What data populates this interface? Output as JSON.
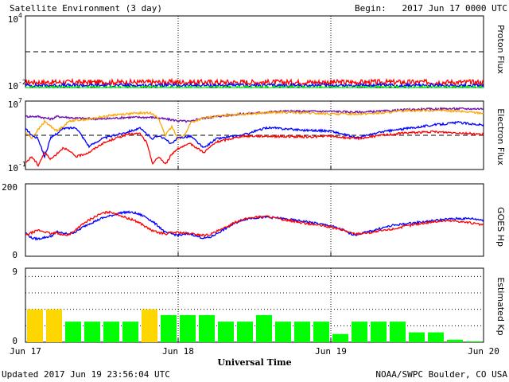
{
  "header": {
    "title": "Satellite Environment (3 day)",
    "begin_label": "Begin:",
    "begin_value": "2017 Jun 17 0000 UTC"
  },
  "footer": {
    "updated": "Updated 2017 Jun 19 23:56:04 UTC",
    "credit": "NOAA/SWPC Boulder, CO USA"
  },
  "colors": {
    "red": "#ff0000",
    "blue": "#0000ff",
    "green": "#00ff00",
    "orange": "#ffa500",
    "purple": "#6a0dad",
    "kp_yellow": "#ffd700",
    "kp_green": "#00ff00"
  },
  "chart_data": [
    {
      "type": "line",
      "panel": "proton",
      "ylabel": "Proton Flux",
      "yscale": "log",
      "ylim_exp": [
        -2,
        4
      ],
      "ytick_labels": [
        {
          "base": "10",
          "exp": "4",
          "value": 4
        },
        {
          "base": "10",
          "exp": "-2",
          "value": -2
        }
      ],
      "threshold_exp": 1,
      "series": [
        {
          "color": "red",
          "base_exp": -1.55,
          "noise": 0.22
        },
        {
          "color": "blue",
          "base_exp": -1.82,
          "noise": 0.14
        },
        {
          "color": "green",
          "base_exp": -2.0,
          "noise": 0.13
        }
      ]
    },
    {
      "type": "line",
      "panel": "electron",
      "ylabel": "Electron Flux",
      "yscale": "log",
      "ylim_exp": [
        -1,
        7
      ],
      "ytick_labels": [
        {
          "base": "10",
          "exp": "7",
          "value": 7
        },
        {
          "base": "10",
          "exp": "-1",
          "value": -1
        }
      ],
      "threshold_exp": 3,
      "series": [
        {
          "color": "purple",
          "points": [
            [
              0,
              5.2
            ],
            [
              2,
              5.2
            ],
            [
              4,
              4.9
            ],
            [
              5,
              5.2
            ],
            [
              8,
              5.0
            ],
            [
              12,
              4.9
            ],
            [
              16,
              5.1
            ],
            [
              20,
              5.1
            ],
            [
              24,
              4.7
            ],
            [
              26,
              4.6
            ],
            [
              27,
              4.9
            ],
            [
              30,
              5.2
            ],
            [
              34,
              5.5
            ],
            [
              40,
              5.8
            ],
            [
              48,
              5.8
            ],
            [
              52,
              5.7
            ],
            [
              56,
              5.8
            ],
            [
              60,
              6.0
            ],
            [
              66,
              6.1
            ],
            [
              72,
              6.1
            ]
          ]
        },
        {
          "color": "orange",
          "points": [
            [
              0,
              3.3
            ],
            [
              1,
              2.7
            ],
            [
              3,
              4.6
            ],
            [
              5,
              3.5
            ],
            [
              7,
              4.7
            ],
            [
              10,
              4.9
            ],
            [
              14,
              5.4
            ],
            [
              18,
              5.6
            ],
            [
              20,
              5.6
            ],
            [
              21,
              4.8
            ],
            [
              22,
              3.0
            ],
            [
              23,
              4.0
            ],
            [
              24,
              2.6
            ],
            [
              25,
              3.0
            ],
            [
              26,
              4.5
            ],
            [
              28,
              5.0
            ],
            [
              32,
              5.4
            ],
            [
              40,
              5.7
            ],
            [
              48,
              5.5
            ],
            [
              52,
              5.5
            ],
            [
              56,
              5.6
            ],
            [
              60,
              5.9
            ],
            [
              66,
              5.9
            ],
            [
              72,
              5.6
            ]
          ]
        },
        {
          "color": "blue",
          "points": [
            [
              0,
              3.8
            ],
            [
              1,
              3.0
            ],
            [
              2,
              2.6
            ],
            [
              3,
              0.5
            ],
            [
              4,
              2.7
            ],
            [
              6,
              3.8
            ],
            [
              8,
              3.9
            ],
            [
              10,
              1.7
            ],
            [
              12,
              2.6
            ],
            [
              14,
              3.0
            ],
            [
              16,
              3.4
            ],
            [
              18,
              3.8
            ],
            [
              19,
              3.2
            ],
            [
              20,
              2.6
            ],
            [
              21,
              3.0
            ],
            [
              22,
              2.5
            ],
            [
              23,
              2.0
            ],
            [
              24,
              2.7
            ],
            [
              26,
              2.9
            ],
            [
              28,
              1.5
            ],
            [
              30,
              2.6
            ],
            [
              34,
              3.0
            ],
            [
              38,
              3.9
            ],
            [
              44,
              3.6
            ],
            [
              48,
              3.5
            ],
            [
              52,
              2.7
            ],
            [
              56,
              3.4
            ],
            [
              60,
              3.8
            ],
            [
              64,
              4.2
            ],
            [
              68,
              4.5
            ],
            [
              72,
              4.2
            ]
          ]
        },
        {
          "color": "red",
          "points": [
            [
              0,
              -0.2
            ],
            [
              1,
              0.5
            ],
            [
              2,
              -0.5
            ],
            [
              3,
              1.0
            ],
            [
              4,
              0.2
            ],
            [
              6,
              1.6
            ],
            [
              8,
              0.5
            ],
            [
              10,
              1.0
            ],
            [
              12,
              2.0
            ],
            [
              14,
              2.6
            ],
            [
              16,
              3.1
            ],
            [
              18,
              3.2
            ],
            [
              19,
              2.2
            ],
            [
              20,
              -0.3
            ],
            [
              21,
              0.5
            ],
            [
              22,
              -0.4
            ],
            [
              23,
              0.8
            ],
            [
              24,
              1.5
            ],
            [
              26,
              2.0
            ],
            [
              28,
              1.0
            ],
            [
              30,
              2.2
            ],
            [
              34,
              2.9
            ],
            [
              38,
              2.9
            ],
            [
              44,
              2.8
            ],
            [
              48,
              2.9
            ],
            [
              52,
              2.6
            ],
            [
              56,
              3.0
            ],
            [
              60,
              3.3
            ],
            [
              64,
              3.4
            ],
            [
              68,
              3.3
            ],
            [
              72,
              3.1
            ]
          ]
        }
      ]
    },
    {
      "type": "line",
      "panel": "hp",
      "ylabel": "GOES Hp",
      "ylim": [
        0,
        200
      ],
      "ytick_labels": [
        {
          "label": "200",
          "value": 200
        },
        {
          "label": "0",
          "value": 0
        }
      ],
      "series": [
        {
          "color": "blue",
          "points": [
            [
              0,
              65
            ],
            [
              1,
              50
            ],
            [
              2,
              48
            ],
            [
              3,
              52
            ],
            [
              4,
              55
            ],
            [
              5,
              68
            ],
            [
              6,
              62
            ],
            [
              7,
              63
            ],
            [
              8,
              68
            ],
            [
              9,
              80
            ],
            [
              10,
              90
            ],
            [
              11,
              97
            ],
            [
              12,
              105
            ],
            [
              13,
              110
            ],
            [
              14,
              115
            ],
            [
              15,
              120
            ],
            [
              16,
              122
            ],
            [
              17,
              120
            ],
            [
              18,
              115
            ],
            [
              19,
              108
            ],
            [
              20,
              95
            ],
            [
              21,
              82
            ],
            [
              22,
              65
            ],
            [
              23,
              62
            ],
            [
              24,
              58
            ],
            [
              26,
              62
            ],
            [
              27,
              55
            ],
            [
              28,
              50
            ],
            [
              29,
              52
            ],
            [
              30,
              62
            ],
            [
              31,
              72
            ],
            [
              32,
              82
            ],
            [
              33,
              92
            ],
            [
              34,
              100
            ],
            [
              35,
              104
            ],
            [
              36,
              106
            ],
            [
              38,
              108
            ],
            [
              40,
              105
            ],
            [
              42,
              100
            ],
            [
              44,
              96
            ],
            [
              46,
              90
            ],
            [
              48,
              84
            ],
            [
              50,
              72
            ],
            [
              51,
              62
            ],
            [
              52,
              60
            ],
            [
              54,
              68
            ],
            [
              56,
              78
            ],
            [
              58,
              86
            ],
            [
              60,
              90
            ],
            [
              62,
              94
            ],
            [
              64,
              98
            ],
            [
              66,
              102
            ],
            [
              68,
              104
            ],
            [
              70,
              104
            ],
            [
              72,
              100
            ]
          ]
        },
        {
          "color": "red",
          "points": [
            [
              0,
              58
            ],
            [
              1,
              65
            ],
            [
              2,
              72
            ],
            [
              3,
              68
            ],
            [
              4,
              62
            ],
            [
              5,
              65
            ],
            [
              6,
              58
            ],
            [
              7,
              60
            ],
            [
              8,
              75
            ],
            [
              9,
              88
            ],
            [
              10,
              100
            ],
            [
              11,
              110
            ],
            [
              12,
              118
            ],
            [
              13,
              122
            ],
            [
              14,
              120
            ],
            [
              15,
              112
            ],
            [
              16,
              105
            ],
            [
              17,
              100
            ],
            [
              18,
              92
            ],
            [
              19,
              80
            ],
            [
              20,
              70
            ],
            [
              21,
              65
            ],
            [
              22,
              62
            ],
            [
              23,
              65
            ],
            [
              24,
              66
            ],
            [
              26,
              62
            ],
            [
              27,
              60
            ],
            [
              28,
              58
            ],
            [
              29,
              60
            ],
            [
              30,
              68
            ],
            [
              31,
              75
            ],
            [
              32,
              85
            ],
            [
              33,
              95
            ],
            [
              34,
              100
            ],
            [
              35,
              105
            ],
            [
              36,
              108
            ],
            [
              38,
              110
            ],
            [
              40,
              103
            ],
            [
              42,
              97
            ],
            [
              44,
              91
            ],
            [
              46,
              86
            ],
            [
              48,
              80
            ],
            [
              50,
              72
            ],
            [
              51,
              65
            ],
            [
              52,
              62
            ],
            [
              54,
              65
            ],
            [
              56,
              70
            ],
            [
              58,
              76
            ],
            [
              60,
              84
            ],
            [
              62,
              90
            ],
            [
              64,
              95
            ],
            [
              66,
              98
            ],
            [
              68,
              97
            ],
            [
              70,
              92
            ],
            [
              72,
              86
            ]
          ]
        }
      ]
    },
    {
      "type": "bar",
      "panel": "kp",
      "ylabel": "Estimated Kp",
      "ylim": [
        0,
        9
      ],
      "ytick_labels": [
        {
          "label": "9",
          "value": 9
        },
        {
          "label": "0",
          "value": 0
        }
      ],
      "gridlines": [
        2,
        4,
        6,
        8
      ],
      "bar_width_hours": 3,
      "values": [
        4,
        4,
        2.5,
        2.5,
        2.5,
        2.5,
        4,
        3.3,
        3.3,
        3.3,
        2.5,
        2.5,
        3.3,
        2.5,
        2.5,
        2.5,
        1,
        2.5,
        2.5,
        2.5,
        1.2,
        1.2,
        0.3,
        0.1
      ],
      "colors": [
        "kp_yellow",
        "kp_yellow",
        "kp_green",
        "kp_green",
        "kp_green",
        "kp_green",
        "kp_yellow",
        "kp_green",
        "kp_green",
        "kp_green",
        "kp_green",
        "kp_green",
        "kp_green",
        "kp_green",
        "kp_green",
        "kp_green",
        "kp_green",
        "kp_green",
        "kp_green",
        "kp_green",
        "kp_green",
        "kp_green",
        "kp_green",
        "kp_green"
      ]
    }
  ],
  "x_axis": {
    "label": "Universal Time",
    "range_hours": [
      0,
      72
    ],
    "day_lines": [
      24,
      48
    ],
    "ticks": [
      {
        "hour": 0,
        "label": "Jun 17"
      },
      {
        "hour": 24,
        "label": "Jun 18"
      },
      {
        "hour": 48,
        "label": "Jun 19"
      },
      {
        "hour": 72,
        "label": "Jun 20"
      }
    ]
  }
}
